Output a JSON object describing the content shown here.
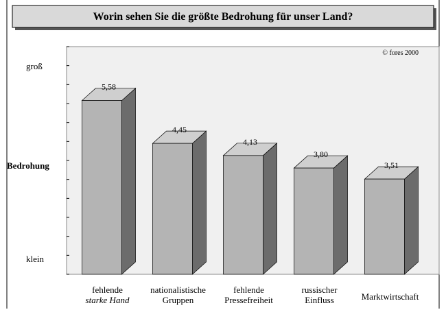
{
  "chart_data": {
    "type": "bar3d",
    "title": "Worin sehen Sie die größte Bedrohung für unser Land?",
    "annotation": "© fores 2000",
    "y_label": "Bedrohung",
    "y_top_label": "groß",
    "y_bottom_label": "klein",
    "categories": [
      [
        "fehlende",
        "starke Hand"
      ],
      [
        "nationalistische",
        "Gruppen"
      ],
      [
        "fehlende",
        "Pressefreiheit"
      ],
      [
        "russischer",
        "Einfluss"
      ],
      [
        "Marktwirtschaft"
      ]
    ],
    "values": [
      5.58,
      4.45,
      4.13,
      3.8,
      3.51
    ],
    "value_labels": [
      "5,58",
      "4,45",
      "4,13",
      "3,80",
      "3,51"
    ],
    "color": "#b4b4b4",
    "ylim": [
      1,
      7
    ],
    "yticks": [
      1,
      1.5,
      2,
      2.5,
      3,
      3.5,
      4,
      4.5,
      5,
      5.5,
      6,
      6.5,
      7
    ]
  }
}
